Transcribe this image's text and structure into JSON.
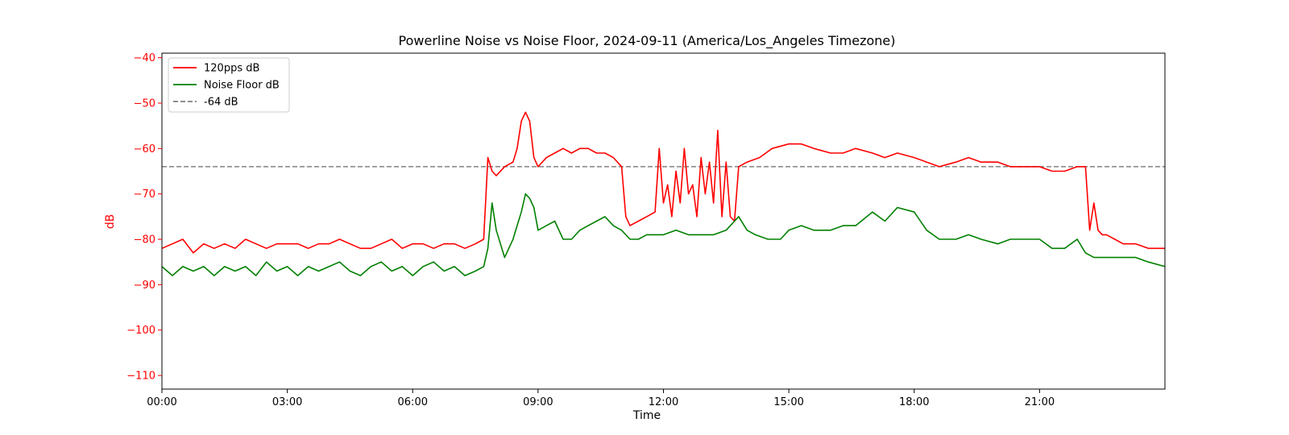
{
  "chart_data": {
    "type": "line",
    "title": "Powerline Noise vs Noise Floor, 2024-09-11 (America/Los_Angeles Timezone)",
    "xlabel": "Time",
    "ylabel": "dB",
    "xlim_hours": [
      0,
      24
    ],
    "ylim": [
      -113,
      -39
    ],
    "x_ticks": [
      {
        "value": 0,
        "label": "00:00"
      },
      {
        "value": 3,
        "label": "03:00"
      },
      {
        "value": 6,
        "label": "06:00"
      },
      {
        "value": 9,
        "label": "09:00"
      },
      {
        "value": 12,
        "label": "12:00"
      },
      {
        "value": 15,
        "label": "15:00"
      },
      {
        "value": 18,
        "label": "18:00"
      },
      {
        "value": 21,
        "label": "21:00"
      }
    ],
    "y_ticks": [
      {
        "value": -40,
        "label": "−40"
      },
      {
        "value": -50,
        "label": "−50"
      },
      {
        "value": -60,
        "label": "−60"
      },
      {
        "value": -70,
        "label": "−70"
      },
      {
        "value": -80,
        "label": "−80"
      },
      {
        "value": -90,
        "label": "−90"
      },
      {
        "value": -100,
        "label": "−100"
      },
      {
        "value": -110,
        "label": "−110"
      }
    ],
    "grid": false,
    "legend_position": "top-left",
    "threshold": {
      "name": "-64 dB",
      "value": -64,
      "color": "#808080"
    },
    "series": [
      {
        "name": "120pps dB",
        "color": "#ff0000",
        "x": [
          0.0,
          0.25,
          0.5,
          0.75,
          1.0,
          1.25,
          1.5,
          1.75,
          2.0,
          2.25,
          2.5,
          2.75,
          3.0,
          3.25,
          3.5,
          3.75,
          4.0,
          4.25,
          4.5,
          4.75,
          5.0,
          5.25,
          5.5,
          5.75,
          6.0,
          6.25,
          6.5,
          6.75,
          7.0,
          7.25,
          7.5,
          7.7,
          7.8,
          7.9,
          8.0,
          8.2,
          8.4,
          8.5,
          8.6,
          8.7,
          8.8,
          8.9,
          9.0,
          9.2,
          9.4,
          9.6,
          9.8,
          10.0,
          10.2,
          10.4,
          10.6,
          10.8,
          11.0,
          11.1,
          11.2,
          11.4,
          11.6,
          11.8,
          11.9,
          12.0,
          12.1,
          12.2,
          12.3,
          12.4,
          12.5,
          12.6,
          12.7,
          12.8,
          12.9,
          13.0,
          13.1,
          13.2,
          13.3,
          13.4,
          13.5,
          13.6,
          13.7,
          13.8,
          14.0,
          14.3,
          14.6,
          15.0,
          15.3,
          15.6,
          16.0,
          16.3,
          16.6,
          17.0,
          17.3,
          17.6,
          18.0,
          18.3,
          18.6,
          19.0,
          19.3,
          19.6,
          20.0,
          20.3,
          20.6,
          21.0,
          21.3,
          21.6,
          21.9,
          22.1,
          22.2,
          22.3,
          22.4,
          22.5,
          22.6,
          22.8,
          23.0,
          23.3,
          23.6,
          24.0
        ],
        "values": [
          -82,
          -81,
          -80,
          -83,
          -81,
          -82,
          -81,
          -82,
          -80,
          -81,
          -82,
          -81,
          -81,
          -81,
          -82,
          -81,
          -81,
          -80,
          -81,
          -82,
          -82,
          -81,
          -80,
          -82,
          -81,
          -81,
          -82,
          -81,
          -81,
          -82,
          -81,
          -80,
          -62,
          -65,
          -66,
          -64,
          -63,
          -60,
          -54,
          -52,
          -54,
          -62,
          -64,
          -62,
          -61,
          -60,
          -61,
          -60,
          -60,
          -61,
          -61,
          -62,
          -64,
          -75,
          -77,
          -76,
          -75,
          -74,
          -60,
          -72,
          -68,
          -75,
          -65,
          -72,
          -60,
          -70,
          -68,
          -75,
          -62,
          -70,
          -63,
          -72,
          -56,
          -75,
          -63,
          -75,
          -76,
          -64,
          -63,
          -62,
          -60,
          -59,
          -59,
          -60,
          -61,
          -61,
          -60,
          -61,
          -62,
          -61,
          -62,
          -63,
          -64,
          -63,
          -62,
          -63,
          -63,
          -64,
          -64,
          -64,
          -65,
          -65,
          -64,
          -64,
          -78,
          -72,
          -78,
          -79,
          -79,
          -80,
          -81,
          -81,
          -82,
          -82
        ]
      },
      {
        "name": "Noise Floor dB",
        "color": "#008000",
        "x": [
          0.0,
          0.25,
          0.5,
          0.75,
          1.0,
          1.25,
          1.5,
          1.75,
          2.0,
          2.25,
          2.5,
          2.75,
          3.0,
          3.25,
          3.5,
          3.75,
          4.0,
          4.25,
          4.5,
          4.75,
          5.0,
          5.25,
          5.5,
          5.75,
          6.0,
          6.25,
          6.5,
          6.75,
          7.0,
          7.25,
          7.5,
          7.7,
          7.8,
          7.9,
          8.0,
          8.2,
          8.4,
          8.5,
          8.6,
          8.7,
          8.8,
          8.9,
          9.0,
          9.2,
          9.4,
          9.6,
          9.8,
          10.0,
          10.2,
          10.4,
          10.6,
          10.8,
          11.0,
          11.2,
          11.4,
          11.6,
          11.8,
          12.0,
          12.3,
          12.6,
          12.9,
          13.2,
          13.5,
          13.8,
          14.0,
          14.2,
          14.5,
          14.8,
          15.0,
          15.3,
          15.6,
          16.0,
          16.3,
          16.6,
          17.0,
          17.3,
          17.6,
          18.0,
          18.3,
          18.6,
          19.0,
          19.3,
          19.6,
          20.0,
          20.3,
          20.6,
          21.0,
          21.3,
          21.6,
          21.9,
          22.1,
          22.3,
          22.5,
          22.8,
          23.0,
          23.3,
          23.6,
          24.0
        ],
        "values": [
          -86,
          -88,
          -86,
          -87,
          -86,
          -88,
          -86,
          -87,
          -86,
          -88,
          -85,
          -87,
          -86,
          -88,
          -86,
          -87,
          -86,
          -85,
          -87,
          -88,
          -86,
          -85,
          -87,
          -86,
          -88,
          -86,
          -85,
          -87,
          -86,
          -88,
          -87,
          -86,
          -82,
          -72,
          -78,
          -84,
          -80,
          -77,
          -74,
          -70,
          -71,
          -73,
          -78,
          -77,
          -76,
          -80,
          -80,
          -78,
          -77,
          -76,
          -75,
          -77,
          -78,
          -80,
          -80,
          -79,
          -79,
          -79,
          -78,
          -79,
          -79,
          -79,
          -78,
          -75,
          -78,
          -79,
          -80,
          -80,
          -78,
          -77,
          -78,
          -78,
          -77,
          -77,
          -74,
          -76,
          -73,
          -74,
          -78,
          -80,
          -80,
          -79,
          -80,
          -81,
          -80,
          -80,
          -80,
          -82,
          -82,
          -80,
          -83,
          -84,
          -84,
          -84,
          -84,
          -84,
          -85,
          -86
        ]
      }
    ]
  }
}
